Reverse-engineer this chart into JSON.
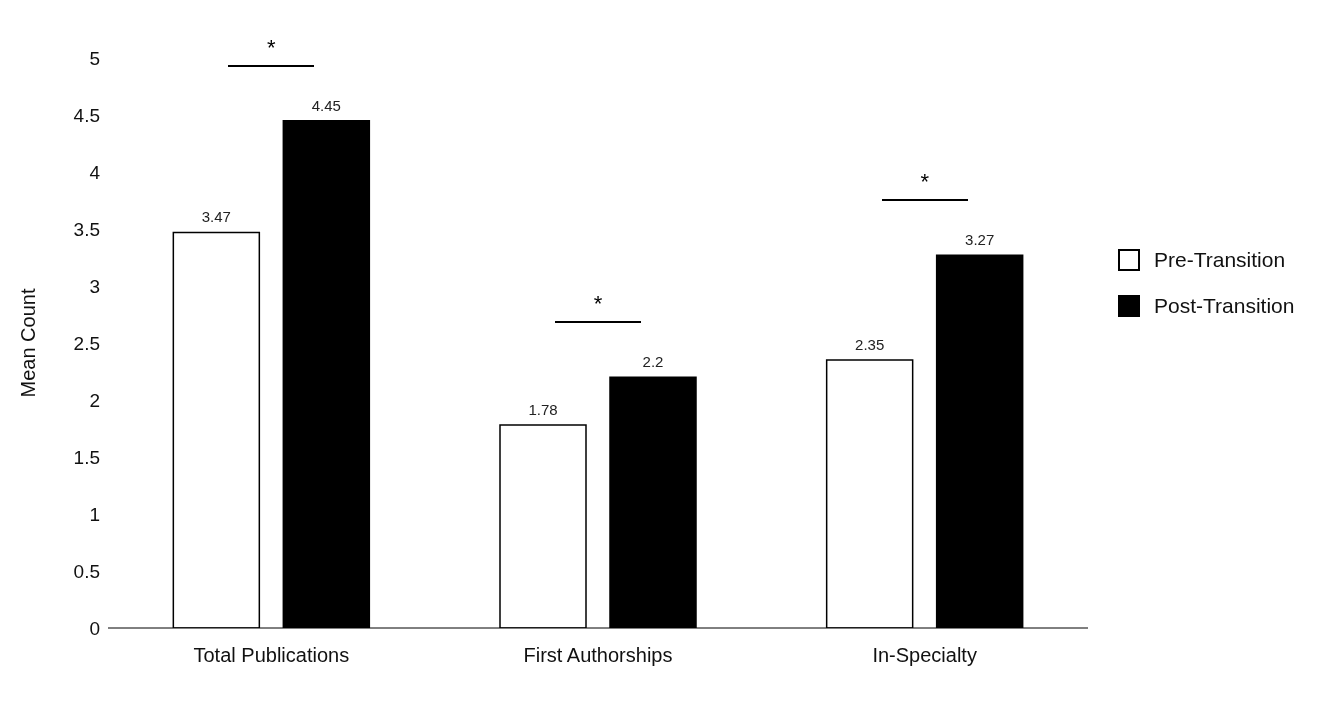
{
  "chart_data": {
    "type": "bar",
    "ylabel": "Mean Count",
    "categories": [
      "Total Publications",
      "First Authorships",
      "In-Specialty"
    ],
    "series": [
      {
        "name": "Pre-Transition",
        "color": "#ffffff",
        "values": [
          3.47,
          1.78,
          2.35
        ]
      },
      {
        "name": "Post-Transition",
        "color": "#000000",
        "values": [
          4.45,
          2.2,
          3.27
        ]
      }
    ],
    "ylim": [
      0,
      5
    ],
    "yticks": [
      0,
      0.5,
      1,
      1.5,
      2,
      2.5,
      3,
      3.5,
      4,
      4.5,
      5
    ],
    "grid": false,
    "legend": "right",
    "data_labels": true,
    "annotations": [
      "*",
      "*",
      "*"
    ]
  }
}
